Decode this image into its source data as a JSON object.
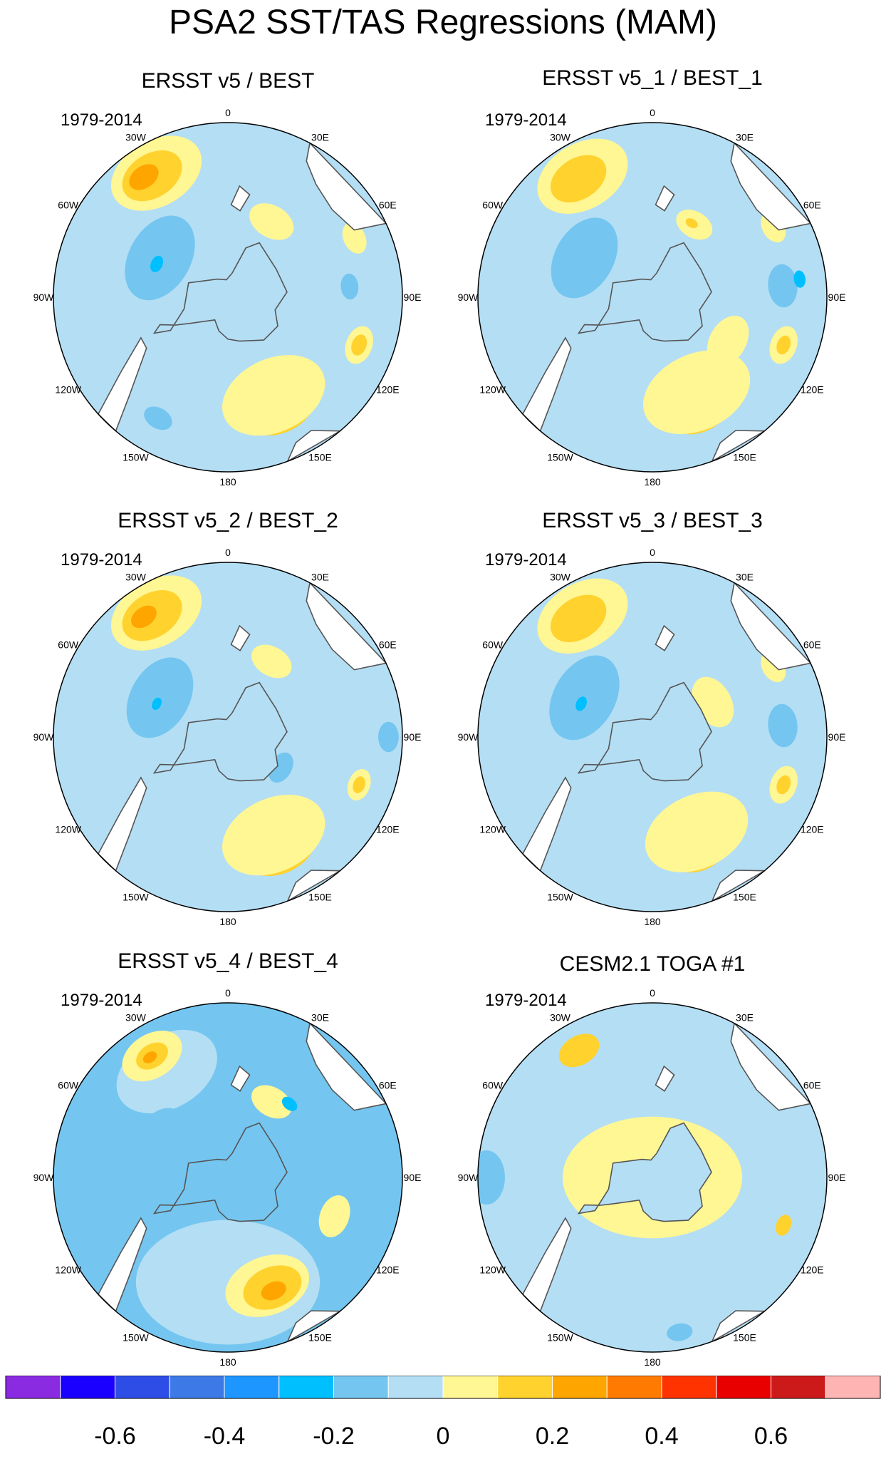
{
  "title": "PSA2 SST/TAS Regressions (MAM)",
  "colors": {
    "land": "#ffffff",
    "coast": "#555555",
    "levels": [
      "#8a2be2",
      "#1a00ff",
      "#2e4de6",
      "#3d7ae8",
      "#1e96ff",
      "#00bfff",
      "#74c6f0",
      "#b4def4",
      "#fff694",
      "#ffd22e",
      "#ffa500",
      "#ff7a00",
      "#ff3300",
      "#e80000",
      "#cc1a1a",
      "#ffb4b4"
    ]
  },
  "longitude_labels": [
    "0",
    "30E",
    "60E",
    "90E",
    "120E",
    "150E",
    "180",
    "150W",
    "120W",
    "90W",
    "60W",
    "30W"
  ],
  "panels": [
    {
      "title": "ERSST v5 / BEST",
      "period": "1979-2014"
    },
    {
      "title": "ERSST v5_1 / BEST_1",
      "period": "1979-2014"
    },
    {
      "title": "ERSST v5_2 / BEST_2",
      "period": "1979-2014"
    },
    {
      "title": "ERSST v5_3 / BEST_3",
      "period": "1979-2014"
    },
    {
      "title": "ERSST v5_4 / BEST_4",
      "period": "1979-2014"
    },
    {
      "title": "CESM2.1 TOGA #1",
      "period": "1979-2014"
    }
  ],
  "colorbar": {
    "tick_labels": [
      "-0.6",
      "-0.4",
      "-0.2",
      "0",
      "0.2",
      "0.4",
      "0.6"
    ]
  },
  "fields": [
    {
      "base": 7,
      "blobs": [
        {
          "lvl": 11,
          "lon": 20,
          "r": 0.78,
          "w": 0.12
        },
        {
          "lvl": 10,
          "lon": 22,
          "r": 0.74,
          "w": 0.2
        },
        {
          "lvl": 9,
          "lon": 25,
          "r": 0.7,
          "w": 0.34
        },
        {
          "lvl": 8,
          "lon": 25,
          "r": 0.62,
          "w": 0.5
        },
        {
          "lvl": 8,
          "lon": 210,
          "r": 0.82,
          "w": 0.45
        },
        {
          "lvl": 9,
          "lon": 212,
          "r": 0.82,
          "w": 0.3
        },
        {
          "lvl": 10,
          "lon": 215,
          "r": 0.84,
          "w": 0.15
        },
        {
          "lvl": 6,
          "lon": 240,
          "r": 0.45,
          "w": 0.42
        },
        {
          "lvl": 5,
          "lon": 245,
          "r": 0.45,
          "w": 0.08
        },
        {
          "lvl": 8,
          "lon": 150,
          "r": 0.5,
          "w": 0.22
        },
        {
          "lvl": 8,
          "lon": 70,
          "r": 0.8,
          "w": 0.18
        },
        {
          "lvl": 9,
          "lon": 70,
          "r": 0.8,
          "w": 0.1
        },
        {
          "lvl": 6,
          "lon": 85,
          "r": 0.2,
          "w": 0.12
        },
        {
          "lvl": 6,
          "lon": 330,
          "r": 0.8,
          "w": 0.14
        },
        {
          "lvl": 6,
          "lon": 95,
          "r": 0.7,
          "w": 0.12
        },
        {
          "lvl": 8,
          "lon": 115,
          "r": 0.8,
          "w": 0.15
        }
      ]
    },
    {
      "base": 7,
      "blobs": [
        {
          "lvl": 10,
          "lon": 20,
          "r": 0.74,
          "w": 0.14
        },
        {
          "lvl": 9,
          "lon": 22,
          "r": 0.7,
          "w": 0.3
        },
        {
          "lvl": 8,
          "lon": 25,
          "r": 0.6,
          "w": 0.52
        },
        {
          "lvl": 8,
          "lon": 210,
          "r": 0.8,
          "w": 0.45
        },
        {
          "lvl": 9,
          "lon": 212,
          "r": 0.8,
          "w": 0.28
        },
        {
          "lvl": 8,
          "lon": 60,
          "r": 0.5,
          "w": 0.25
        },
        {
          "lvl": 8,
          "lon": 70,
          "r": 0.8,
          "w": 0.18
        },
        {
          "lvl": 9,
          "lon": 70,
          "r": 0.8,
          "w": 0.09
        },
        {
          "lvl": 6,
          "lon": 240,
          "r": 0.45,
          "w": 0.4
        },
        {
          "lvl": 6,
          "lon": 95,
          "r": 0.75,
          "w": 0.2
        },
        {
          "lvl": 5,
          "lon": 97,
          "r": 0.85,
          "w": 0.08
        },
        {
          "lvl": 8,
          "lon": 150,
          "r": 0.48,
          "w": 0.18
        },
        {
          "lvl": 9,
          "lon": 152,
          "r": 0.48,
          "w": 0.06
        },
        {
          "lvl": 8,
          "lon": 120,
          "r": 0.8,
          "w": 0.15
        }
      ]
    },
    {
      "base": 7,
      "blobs": [
        {
          "lvl": 11,
          "lon": 20,
          "r": 0.74,
          "w": 0.12
        },
        {
          "lvl": 10,
          "lon": 22,
          "r": 0.72,
          "w": 0.22
        },
        {
          "lvl": 9,
          "lon": 25,
          "r": 0.7,
          "w": 0.35
        },
        {
          "lvl": 8,
          "lon": 25,
          "r": 0.62,
          "w": 0.5
        },
        {
          "lvl": 8,
          "lon": 210,
          "r": 0.82,
          "w": 0.45
        },
        {
          "lvl": 9,
          "lon": 212,
          "r": 0.82,
          "w": 0.3
        },
        {
          "lvl": 10,
          "lon": 215,
          "r": 0.84,
          "w": 0.13
        },
        {
          "lvl": 6,
          "lon": 240,
          "r": 0.45,
          "w": 0.4
        },
        {
          "lvl": 5,
          "lon": 245,
          "r": 0.45,
          "w": 0.06
        },
        {
          "lvl": 8,
          "lon": 150,
          "r": 0.5,
          "w": 0.2
        },
        {
          "lvl": 8,
          "lon": 70,
          "r": 0.8,
          "w": 0.15
        },
        {
          "lvl": 9,
          "lon": 70,
          "r": 0.8,
          "w": 0.08
        },
        {
          "lvl": 6,
          "lon": 90,
          "r": 0.92,
          "w": 0.14
        },
        {
          "lvl": 6,
          "lon": 60,
          "r": 0.35,
          "w": 0.15
        }
      ]
    },
    {
      "base": 7,
      "blobs": [
        {
          "lvl": 10,
          "lon": 20,
          "r": 0.74,
          "w": 0.12
        },
        {
          "lvl": 9,
          "lon": 22,
          "r": 0.7,
          "w": 0.28
        },
        {
          "lvl": 8,
          "lon": 25,
          "r": 0.6,
          "w": 0.5
        },
        {
          "lvl": 8,
          "lon": 210,
          "r": 0.8,
          "w": 0.45
        },
        {
          "lvl": 9,
          "lon": 212,
          "r": 0.8,
          "w": 0.28
        },
        {
          "lvl": 8,
          "lon": 70,
          "r": 0.8,
          "w": 0.18
        },
        {
          "lvl": 9,
          "lon": 70,
          "r": 0.8,
          "w": 0.09
        },
        {
          "lvl": 6,
          "lon": 240,
          "r": 0.45,
          "w": 0.42
        },
        {
          "lvl": 5,
          "lon": 245,
          "r": 0.45,
          "w": 0.07
        },
        {
          "lvl": 8,
          "lon": 120,
          "r": 0.4,
          "w": 0.25
        },
        {
          "lvl": 6,
          "lon": 95,
          "r": 0.75,
          "w": 0.2
        },
        {
          "lvl": 8,
          "lon": 120,
          "r": 0.8,
          "w": 0.15
        }
      ]
    },
    {
      "base": 6,
      "blobs": [
        {
          "lvl": 7,
          "lon": 0,
          "r": 0.6,
          "w": 0.85
        },
        {
          "lvl": 7,
          "lon": 210,
          "r": 0.7,
          "w": 0.5
        },
        {
          "lvl": 8,
          "lon": 20,
          "r": 0.66,
          "w": 0.4
        },
        {
          "lvl": 9,
          "lon": 22,
          "r": 0.68,
          "w": 0.28
        },
        {
          "lvl": 10,
          "lon": 22,
          "r": 0.7,
          "w": 0.12
        },
        {
          "lvl": 8,
          "lon": 212,
          "r": 0.82,
          "w": 0.3
        },
        {
          "lvl": 9,
          "lon": 212,
          "r": 0.82,
          "w": 0.16
        },
        {
          "lvl": 10,
          "lon": 213,
          "r": 0.82,
          "w": 0.07
        },
        {
          "lvl": 8,
          "lon": 150,
          "r": 0.5,
          "w": 0.2
        },
        {
          "lvl": 8,
          "lon": 70,
          "r": 0.65,
          "w": 0.2
        },
        {
          "lvl": 6,
          "lon": 240,
          "r": 0.45,
          "w": 0.3
        },
        {
          "lvl": 5,
          "lon": 140,
          "r": 0.55,
          "w": 0.08
        }
      ]
    },
    {
      "base": 7,
      "blobs": [
        {
          "lvl": 8,
          "lon": 0,
          "r": 0.0,
          "w": 0.83
        },
        {
          "lvl": 9,
          "lon": 210,
          "r": 0.84,
          "w": 0.2
        },
        {
          "lvl": 9,
          "lon": 70,
          "r": 0.8,
          "w": 0.1
        },
        {
          "lvl": 6,
          "lon": 270,
          "r": 0.95,
          "w": 0.25
        },
        {
          "lvl": 6,
          "lon": 10,
          "r": 0.9,
          "w": 0.12
        }
      ]
    }
  ]
}
